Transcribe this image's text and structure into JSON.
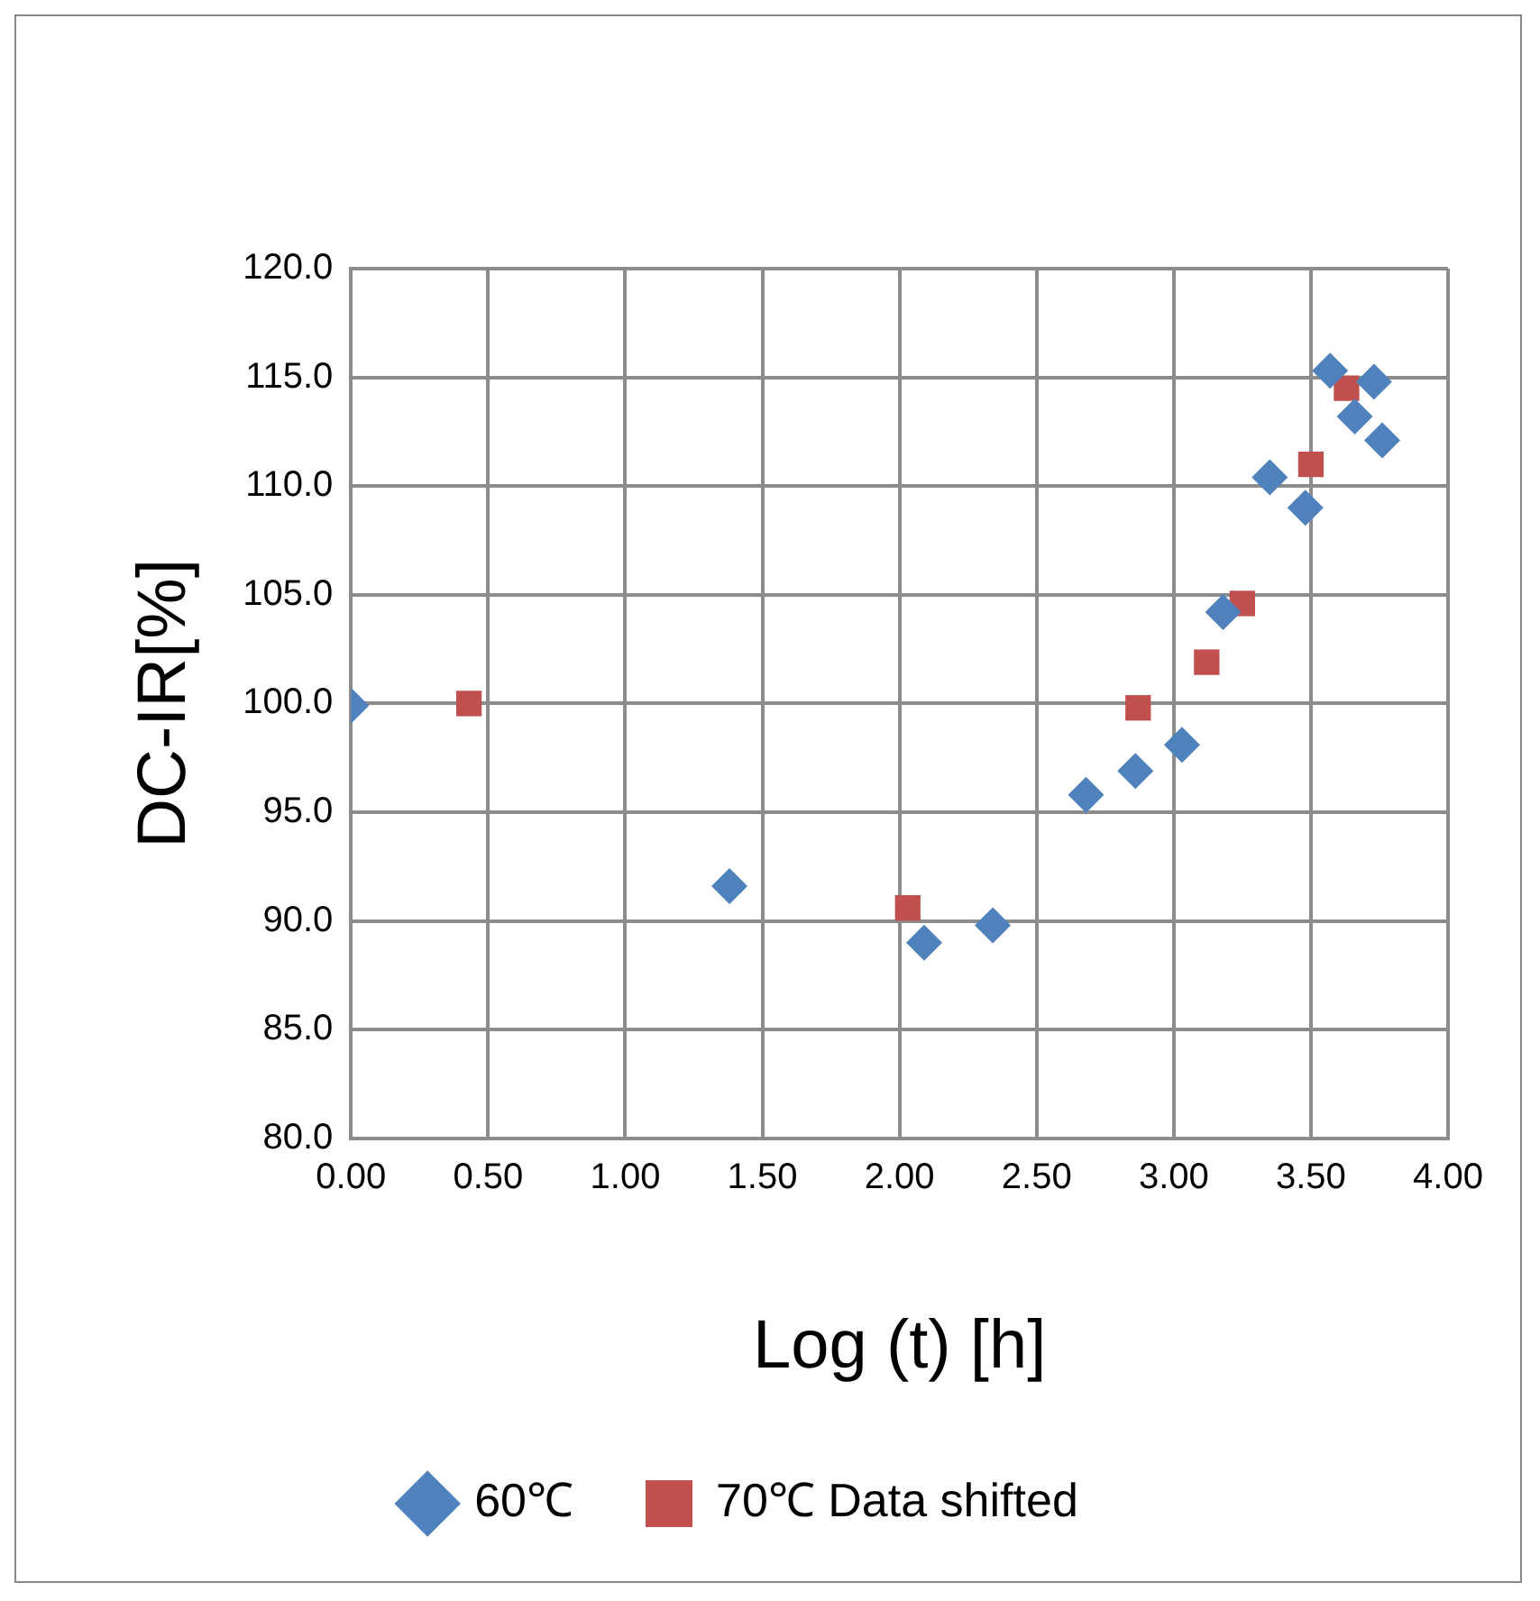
{
  "chart_data": {
    "type": "scatter",
    "xlabel": "Log (t) [h]",
    "ylabel": "DC-IR[%]",
    "series": [
      {
        "name": "60℃",
        "color": "#4f81bd",
        "marker": "diamond",
        "x": [
          0.0,
          1.38,
          2.09,
          2.34,
          2.68,
          2.86,
          3.03,
          3.18,
          3.35,
          3.48,
          3.57,
          3.66,
          3.73,
          3.76
        ],
        "values": [
          99.9,
          91.6,
          89.0,
          89.8,
          95.8,
          96.9,
          98.1,
          104.2,
          110.4,
          109.0,
          115.3,
          113.2,
          114.8,
          112.1
        ]
      },
      {
        "name": "70℃ Data shifted",
        "color": "#c0504d",
        "marker": "square",
        "x": [
          0.43,
          2.03,
          2.87,
          3.12,
          3.25,
          3.5,
          3.63
        ],
        "values": [
          100.0,
          90.6,
          99.8,
          101.9,
          104.6,
          111.0,
          114.5
        ]
      }
    ],
    "xlim": [
      0,
      4
    ],
    "ylim": [
      80,
      120
    ],
    "xticks": [
      {
        "value": 0,
        "label": "0.00"
      },
      {
        "value": 0.5,
        "label": "0.50"
      },
      {
        "value": 1,
        "label": "1.00"
      },
      {
        "value": 1.5,
        "label": "1.50"
      },
      {
        "value": 2,
        "label": "2.00"
      },
      {
        "value": 2.5,
        "label": "2.50"
      },
      {
        "value": 3,
        "label": "3.00"
      },
      {
        "value": 3.5,
        "label": "3.50"
      },
      {
        "value": 4,
        "label": "4.00"
      }
    ],
    "yticks": [
      {
        "value": 80,
        "label": "80.0"
      },
      {
        "value": 85,
        "label": "85.0"
      },
      {
        "value": 90,
        "label": "90.0"
      },
      {
        "value": 95,
        "label": "95.0"
      },
      {
        "value": 100,
        "label": "100.0"
      },
      {
        "value": 105,
        "label": "105.0"
      },
      {
        "value": 110,
        "label": "110.0"
      },
      {
        "value": 115,
        "label": "115.0"
      },
      {
        "value": 120,
        "label": "120.0"
      }
    ],
    "grid": true,
    "legend": "bottom"
  }
}
